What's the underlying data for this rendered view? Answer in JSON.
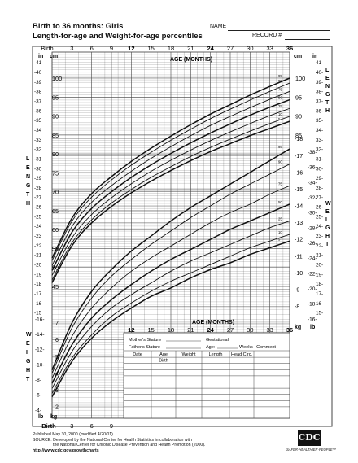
{
  "header": {
    "title": "Birth to 36 months: Girls",
    "subtitle": "Length-for-age and Weight-for-age percentiles",
    "name_label": "NAME",
    "record_label": "RECORD #"
  },
  "record_box": {
    "mother_label": "Mother's Stature",
    "father_label": "Father's Stature",
    "gestational_label": "Gestational",
    "age_label": "Age:",
    "weeks_label": "Weeks",
    "comment_label": "Comment",
    "columns": [
      "Date",
      "Age",
      "Weight",
      "Length",
      "Head Circ."
    ],
    "first_row_age": "Birth"
  },
  "footer": {
    "published": "Published May 30, 2000 (modified 4/20/01).",
    "source_1": "SOURCE: Developed by the National Center for Health Statistics in collaboration with",
    "source_2": "the National Center for Chronic Disease Prevention and Health Promotion (2000).",
    "url": "http://www.cdc.gov/growthcharts"
  },
  "logo": {
    "text": "CDC",
    "tagline": "SAFER·HEALTHIER·PEOPLE™"
  },
  "colors": {
    "grid": "#444444",
    "curve": "#111111",
    "background": "#ffffff"
  },
  "chart_data": [
    {
      "type": "line",
      "title": "",
      "xlabel": "AGE (MONTHS)",
      "ylabel": "LENGTH",
      "x_ticks": [
        "Birth",
        "3",
        "6",
        "9",
        "12",
        "15",
        "18",
        "21",
        "24",
        "27",
        "30",
        "33",
        "36"
      ],
      "xlim": [
        0,
        36
      ],
      "ylim_cm": [
        43,
        103
      ],
      "y_ticks_cm": [
        "45",
        "50",
        "55",
        "60",
        "65",
        "70",
        "75",
        "80",
        "85",
        "90",
        "95",
        "100"
      ],
      "y_ticks_in": [
        "15",
        "16",
        "17",
        "18",
        "19",
        "20",
        "21",
        "22",
        "23",
        "24",
        "25",
        "26",
        "27",
        "28",
        "29",
        "30",
        "31",
        "32",
        "33",
        "34",
        "35",
        "36",
        "37",
        "38",
        "39",
        "40",
        "41"
      ],
      "units": [
        "in",
        "cm"
      ],
      "axis_side_labels": [
        "L",
        "E",
        "N",
        "G",
        "T",
        "H"
      ],
      "x": [
        0,
        3,
        6,
        9,
        12,
        15,
        18,
        21,
        24,
        27,
        30,
        33,
        36
      ],
      "series": [
        {
          "name": "95",
          "values": [
            52.5,
            63.0,
            69.5,
            74.0,
            78.0,
            81.5,
            84.7,
            87.7,
            90.5,
            93.0,
            95.5,
            97.8,
            100.0
          ]
        },
        {
          "name": "90",
          "values": [
            51.8,
            62.2,
            68.6,
            73.1,
            77.0,
            80.4,
            83.6,
            86.5,
            89.3,
            91.8,
            94.2,
            96.5,
            98.7
          ]
        },
        {
          "name": "75",
          "values": [
            50.5,
            60.8,
            67.2,
            71.6,
            75.4,
            78.8,
            81.9,
            84.8,
            87.5,
            89.9,
            92.2,
            94.4,
            96.5
          ]
        },
        {
          "name": "50",
          "values": [
            49.2,
            59.3,
            65.6,
            70.0,
            73.8,
            77.1,
            80.1,
            82.9,
            85.5,
            87.9,
            90.2,
            92.3,
            94.3
          ]
        },
        {
          "name": "25",
          "values": [
            47.9,
            57.8,
            64.0,
            68.4,
            72.1,
            75.4,
            78.3,
            81.0,
            83.5,
            85.8,
            88.0,
            90.1,
            92.0
          ]
        },
        {
          "name": "10",
          "values": [
            46.7,
            56.5,
            62.6,
            67.0,
            70.6,
            73.8,
            76.6,
            79.3,
            81.7,
            83.9,
            86.0,
            88.0,
            89.9
          ]
        },
        {
          "name": "5",
          "values": [
            46.0,
            55.7,
            61.8,
            66.1,
            69.7,
            72.8,
            75.6,
            78.2,
            80.6,
            82.7,
            84.8,
            86.7,
            88.6
          ]
        }
      ]
    },
    {
      "type": "line",
      "title": "",
      "xlabel": "AGE (MONTHS)",
      "ylabel": "WEIGHT",
      "x_ticks": [
        "Birth",
        "3",
        "6",
        "9",
        "12",
        "15",
        "18",
        "21",
        "24",
        "27",
        "30",
        "33",
        "36"
      ],
      "xlim": [
        0,
        36
      ],
      "ylim_kg": [
        1.5,
        18.5
      ],
      "y_ticks_kg": [
        "2",
        "3",
        "4",
        "5",
        "6",
        "7",
        "8",
        "9",
        "10",
        "11",
        "12",
        "13",
        "14",
        "15",
        "16",
        "17",
        "18"
      ],
      "y_ticks_lb": [
        "4",
        "6",
        "8",
        "10",
        "12",
        "14",
        "16",
        "18",
        "20",
        "22",
        "24",
        "26",
        "28",
        "30",
        "32",
        "34",
        "36",
        "38"
      ],
      "units": [
        "lb",
        "kg"
      ],
      "axis_side_labels": [
        "W",
        "E",
        "I",
        "G",
        "H",
        "T"
      ],
      "x": [
        0,
        3,
        6,
        9,
        12,
        15,
        18,
        21,
        24,
        27,
        30,
        33,
        36
      ],
      "series": [
        {
          "name": "95",
          "values": [
            4.2,
            7.0,
            8.9,
            10.2,
            11.3,
            12.2,
            13.1,
            13.9,
            14.6,
            15.3,
            16.0,
            16.7,
            17.4
          ]
        },
        {
          "name": "90",
          "values": [
            4.0,
            6.7,
            8.5,
            9.8,
            10.8,
            11.7,
            12.5,
            13.3,
            14.0,
            14.7,
            15.3,
            15.9,
            16.5
          ]
        },
        {
          "name": "75",
          "values": [
            3.7,
            6.2,
            7.9,
            9.1,
            10.1,
            10.9,
            11.6,
            12.3,
            13.0,
            13.6,
            14.1,
            14.7,
            15.2
          ]
        },
        {
          "name": "50",
          "values": [
            3.4,
            5.7,
            7.3,
            8.4,
            9.3,
            10.1,
            10.8,
            11.4,
            12.0,
            12.6,
            13.1,
            13.6,
            14.1
          ]
        },
        {
          "name": "25",
          "values": [
            3.1,
            5.3,
            6.8,
            7.9,
            8.7,
            9.4,
            10.1,
            10.7,
            11.2,
            11.7,
            12.2,
            12.7,
            13.1
          ]
        },
        {
          "name": "10",
          "values": [
            2.8,
            4.9,
            6.3,
            7.4,
            8.2,
            8.9,
            9.5,
            10.0,
            10.5,
            11.0,
            11.5,
            11.9,
            12.3
          ]
        },
        {
          "name": "5",
          "values": [
            2.6,
            4.7,
            6.1,
            7.1,
            7.9,
            8.6,
            9.1,
            9.7,
            10.2,
            10.6,
            11.1,
            11.5,
            11.9
          ]
        }
      ]
    }
  ]
}
